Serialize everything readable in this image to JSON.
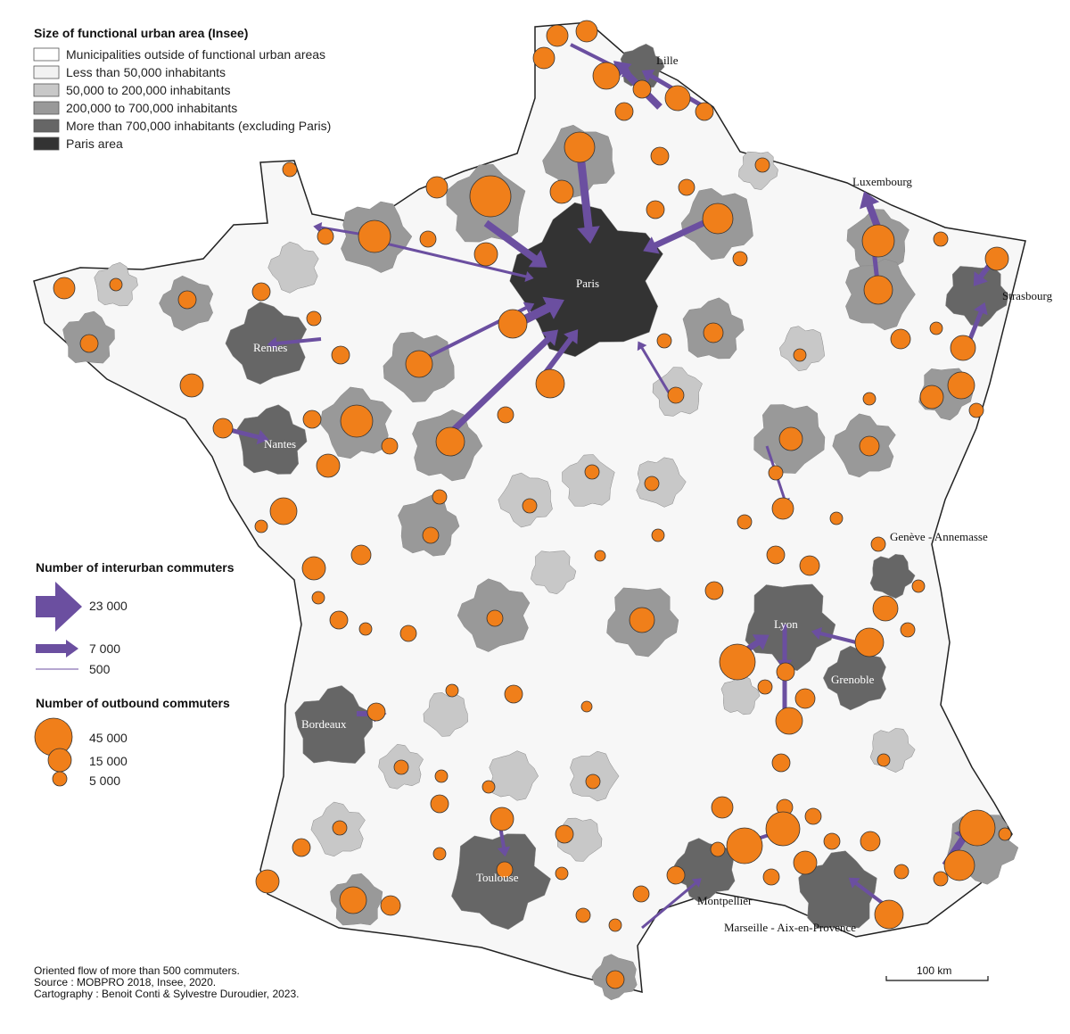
{
  "legend": {
    "area_title": "Size of functional urban area (Insee)",
    "area_classes": [
      "Municipalities outside of functional urban areas",
      "Less than 50,000 inhabitants",
      "50,000 to 200,000 inhabitants",
      "200,000 to 700,000 inhabitants",
      "More than 700,000 inhabitants (excluding Paris)",
      "Paris area"
    ],
    "flows_title": "Number of interurban commuters",
    "flows": [
      "23 000",
      "7 000",
      "500"
    ],
    "outbound_title": "Number of outbound commuters",
    "outbound": [
      "45 000",
      "15 000",
      "5 000"
    ]
  },
  "cities": [
    "Lille",
    "Paris",
    "Luxembourg",
    "Strasbourg",
    "Rennes",
    "Nantes",
    "Genève - Annemasse",
    "Lyon",
    "Grenoble",
    "Bordeaux",
    "Toulouse",
    "Montpellier",
    "Marseille - Aix-en-Provence"
  ],
  "scale_bar": "100 km",
  "notes": [
    "Oriented flow of more than 500 commuters.",
    "Source : MOBPRO 2018, Insee, 2020.",
    "Cartography : Benoit Conti & Sylvestre Duroudier, 2023."
  ]
}
